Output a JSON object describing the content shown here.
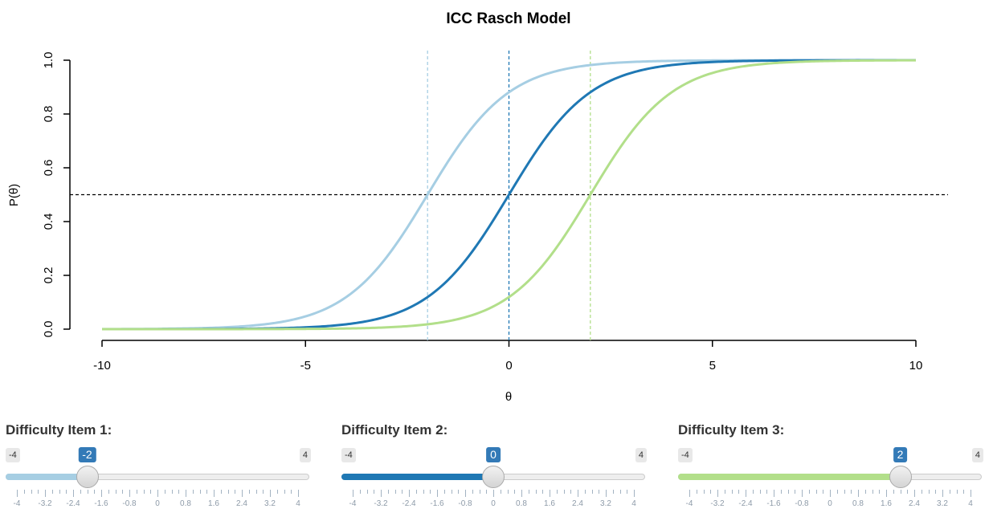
{
  "chart_data": {
    "type": "line",
    "title": "ICC Rasch Model",
    "xlabel": "θ",
    "ylabel": "P(θ)",
    "xlim": [
      -10,
      10
    ],
    "ylim": [
      0,
      1
    ],
    "x_ticks": [
      "-10",
      "-5",
      "0",
      "5",
      "10"
    ],
    "y_ticks": [
      "0.0",
      "0.2",
      "0.4",
      "0.6",
      "0.8",
      "1.0"
    ],
    "function": "P(θ) = 1 / (1 + exp(-(θ - b)))",
    "x": [
      -10,
      -9,
      -8,
      -7,
      -6,
      -5,
      -4,
      -3,
      -2,
      -1,
      0,
      1,
      2,
      3,
      4,
      5,
      6,
      7,
      8,
      9,
      10
    ],
    "series": [
      {
        "difficulty": -2,
        "color": "#a6cee3",
        "values": [
          0.0003,
          0.0009,
          0.0025,
          0.0067,
          0.018,
          0.047,
          0.119,
          0.269,
          0.5,
          0.731,
          0.881,
          0.953,
          0.982,
          0.993,
          0.998,
          0.999,
          1.0,
          1.0,
          1.0,
          1.0,
          1.0
        ]
      },
      {
        "difficulty": 0,
        "color": "#1f78b4",
        "values": [
          0.0,
          0.0001,
          0.0003,
          0.0009,
          0.0025,
          0.0067,
          0.018,
          0.047,
          0.119,
          0.269,
          0.5,
          0.731,
          0.881,
          0.953,
          0.982,
          0.993,
          0.998,
          0.999,
          1.0,
          1.0,
          1.0
        ]
      },
      {
        "difficulty": 2,
        "color": "#b2df8a",
        "values": [
          0.0,
          0.0,
          0.0,
          0.0001,
          0.0003,
          0.0009,
          0.0025,
          0.0067,
          0.018,
          0.047,
          0.119,
          0.269,
          0.5,
          0.731,
          0.881,
          0.953,
          0.982,
          0.993,
          0.998,
          0.999,
          1.0
        ]
      }
    ],
    "hline": 0.5,
    "vlines": [
      -2,
      0,
      2
    ],
    "grid": false,
    "legend": "none"
  },
  "sliders": [
    {
      "label": "Difficulty Item 1:",
      "min_label": "-4",
      "max_label": "4",
      "min": -4,
      "max": 4,
      "value": -2,
      "value_label": "-2",
      "color": "#a6cee3",
      "badge_color": "#337ab7"
    },
    {
      "label": "Difficulty Item 2:",
      "min_label": "-4",
      "max_label": "4",
      "min": -4,
      "max": 4,
      "value": 0,
      "value_label": "0",
      "color": "#1f78b4",
      "badge_color": "#337ab7"
    },
    {
      "label": "Difficulty Item 3:",
      "min_label": "-4",
      "max_label": "4",
      "min": -4,
      "max": 4,
      "value": 2,
      "value_label": "2",
      "color": "#b2df8a",
      "badge_color": "#337ab7"
    }
  ],
  "slider_ticks": [
    "-4",
    "-3.2",
    "-2.4",
    "-1.6",
    "-0.8",
    "0",
    "0.8",
    "1.6",
    "2.4",
    "3.2",
    "4"
  ]
}
